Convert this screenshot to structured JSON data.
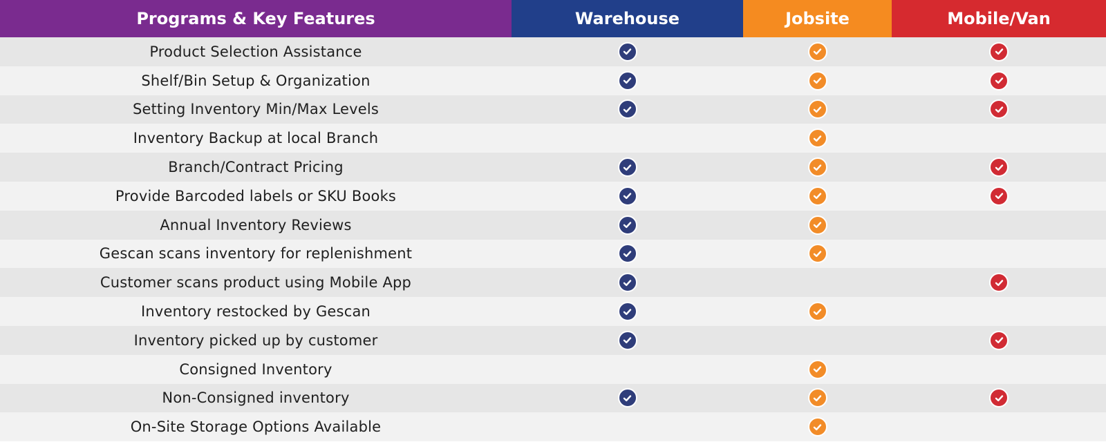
{
  "header": {
    "features": "Programs & Key Features",
    "warehouse": "Warehouse",
    "jobsite": "Jobsite",
    "mobile": "Mobile/Van"
  },
  "colors": {
    "purple": "#7a2b8f",
    "warehouse": "#213f8a",
    "jobsite": "#f58b20",
    "mobile": "#d62a2f",
    "warehouse_check": "#2f3d7a",
    "jobsite_check": "#f28c28",
    "mobile_check": "#d12b34"
  },
  "rows": [
    {
      "feature": "Product Selection Assistance",
      "warehouse": true,
      "jobsite": true,
      "mobile": true
    },
    {
      "feature": "Shelf/Bin Setup & Organization",
      "warehouse": true,
      "jobsite": true,
      "mobile": true
    },
    {
      "feature": "Setting Inventory Min/Max Levels",
      "warehouse": true,
      "jobsite": true,
      "mobile": true
    },
    {
      "feature": "Inventory Backup at local Branch",
      "warehouse": false,
      "jobsite": true,
      "mobile": false
    },
    {
      "feature": "Branch/Contract Pricing",
      "warehouse": true,
      "jobsite": true,
      "mobile": true
    },
    {
      "feature": "Provide Barcoded labels or SKU Books",
      "warehouse": true,
      "jobsite": true,
      "mobile": true
    },
    {
      "feature": "Annual Inventory Reviews",
      "warehouse": true,
      "jobsite": true,
      "mobile": false
    },
    {
      "feature": "Gescan scans inventory for replenishment",
      "warehouse": true,
      "jobsite": true,
      "mobile": false
    },
    {
      "feature": "Customer scans product using Mobile App",
      "warehouse": true,
      "jobsite": false,
      "mobile": true
    },
    {
      "feature": "Inventory restocked by Gescan",
      "warehouse": true,
      "jobsite": true,
      "mobile": false
    },
    {
      "feature": "Inventory picked up by customer",
      "warehouse": true,
      "jobsite": false,
      "mobile": true
    },
    {
      "feature": "Consigned Inventory",
      "warehouse": false,
      "jobsite": true,
      "mobile": false
    },
    {
      "feature": "Non-Consigned inventory",
      "warehouse": true,
      "jobsite": true,
      "mobile": true
    },
    {
      "feature": "On-Site Storage Options Available",
      "warehouse": false,
      "jobsite": true,
      "mobile": false
    }
  ],
  "icons": {
    "check": "check-circle-icon"
  }
}
